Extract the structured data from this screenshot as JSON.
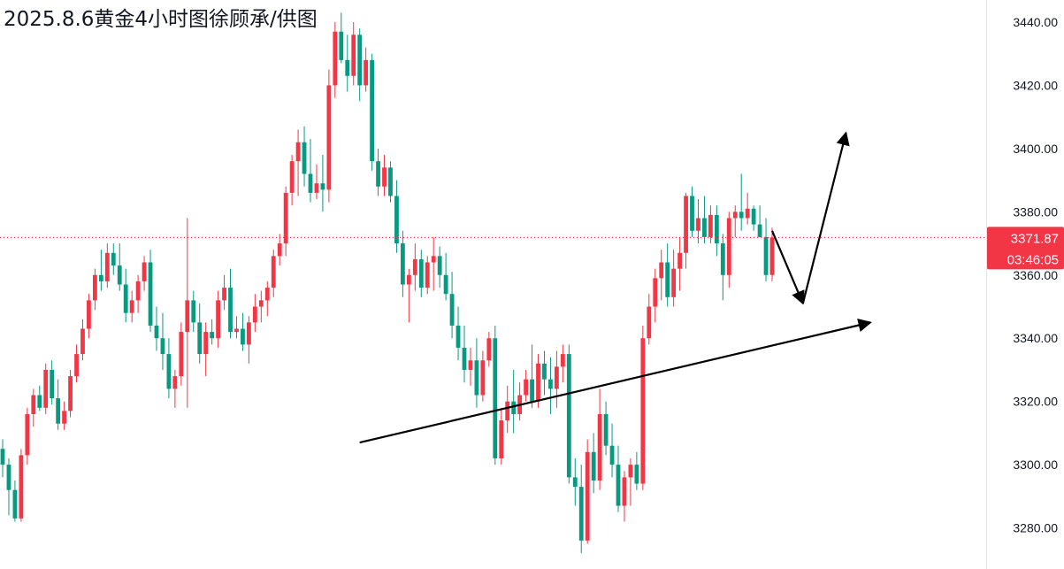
{
  "title": "2025.8.6黄金4小时图徐顾承/供图",
  "colors": {
    "up": "#f23645",
    "down": "#089981",
    "price_line": "#f23645",
    "axis_border": "#e0e3eb",
    "annotation": "#000000"
  },
  "current_price": {
    "value": 3371.87,
    "label": "3371.87",
    "countdown": "03:46:05"
  },
  "chart_data": {
    "type": "candlestick",
    "instrument": "黄金",
    "timeframe": "4小时",
    "ylim": [
      3267,
      3447
    ],
    "y_ticks": [
      3280,
      3300,
      3320,
      3340,
      3360,
      3380,
      3400,
      3420,
      3440
    ],
    "y_tick_labels": [
      "3280.00",
      "3300.00",
      "3320.00",
      "3340.00",
      "3360.00",
      "3380.00",
      "3400.00",
      "3420.00",
      "3440.00"
    ],
    "grid": false,
    "candles": [
      [
        3305,
        3308,
        3296,
        3300
      ],
      [
        3300,
        3302,
        3284,
        3292
      ],
      [
        3292,
        3295,
        3282,
        3283
      ],
      [
        3283,
        3305,
        3282,
        3303
      ],
      [
        3303,
        3318,
        3300,
        3316
      ],
      [
        3316,
        3324,
        3312,
        3322
      ],
      [
        3322,
        3325,
        3317,
        3318
      ],
      [
        3318,
        3332,
        3316,
        3330
      ],
      [
        3330,
        3333,
        3319,
        3321
      ],
      [
        3321,
        3327,
        3311,
        3313
      ],
      [
        3313,
        3320,
        3311,
        3317
      ],
      [
        3317,
        3330,
        3315,
        3328
      ],
      [
        3328,
        3338,
        3326,
        3335
      ],
      [
        3335,
        3346,
        3333,
        3343
      ],
      [
        3343,
        3354,
        3340,
        3352
      ],
      [
        3352,
        3362,
        3349,
        3360
      ],
      [
        3360,
        3368,
        3355,
        3358
      ],
      [
        3358,
        3370,
        3356,
        3367
      ],
      [
        3367,
        3370,
        3360,
        3363
      ],
      [
        3363,
        3370,
        3355,
        3357
      ],
      [
        3357,
        3362,
        3345,
        3348
      ],
      [
        3348,
        3355,
        3345,
        3352
      ],
      [
        3352,
        3360,
        3348,
        3358
      ],
      [
        3358,
        3366,
        3355,
        3364
      ],
      [
        3364,
        3368,
        3342,
        3344
      ],
      [
        3344,
        3350,
        3336,
        3340
      ],
      [
        3340,
        3348,
        3330,
        3335
      ],
      [
        3335,
        3340,
        3321,
        3324
      ],
      [
        3324,
        3330,
        3318,
        3328
      ],
      [
        3328,
        3345,
        3325,
        3342
      ],
      [
        3342,
        3378,
        3318,
        3352
      ],
      [
        3352,
        3355,
        3342,
        3345
      ],
      [
        3345,
        3351,
        3332,
        3335
      ],
      [
        3335,
        3345,
        3328,
        3342
      ],
      [
        3342,
        3346,
        3338,
        3340
      ],
      [
        3340,
        3355,
        3337,
        3352
      ],
      [
        3352,
        3360,
        3349,
        3356
      ],
      [
        3356,
        3362,
        3340,
        3342
      ],
      [
        3342,
        3347,
        3340,
        3343
      ],
      [
        3343,
        3348,
        3336,
        3338
      ],
      [
        3338,
        3347,
        3332,
        3345
      ],
      [
        3345,
        3354,
        3342,
        3350
      ],
      [
        3350,
        3355,
        3345,
        3352
      ],
      [
        3352,
        3358,
        3347,
        3356
      ],
      [
        3356,
        3368,
        3353,
        3366
      ],
      [
        3366,
        3373,
        3363,
        3370
      ],
      [
        3370,
        3388,
        3366,
        3386
      ],
      [
        3386,
        3398,
        3382,
        3396
      ],
      [
        3396,
        3406,
        3385,
        3402
      ],
      [
        3402,
        3407,
        3388,
        3392
      ],
      [
        3392,
        3403,
        3383,
        3386
      ],
      [
        3386,
        3395,
        3384,
        3389
      ],
      [
        3389,
        3398,
        3380,
        3387
      ],
      [
        3387,
        3425,
        3383,
        3420
      ],
      [
        3420,
        3440,
        3416,
        3437
      ],
      [
        3437,
        3443,
        3427,
        3428
      ],
      [
        3428,
        3436,
        3418,
        3423
      ],
      [
        3423,
        3440,
        3420,
        3436
      ],
      [
        3436,
        3438,
        3415,
        3420
      ],
      [
        3420,
        3432,
        3418,
        3428
      ],
      [
        3428,
        3430,
        3393,
        3396
      ],
      [
        3396,
        3400,
        3385,
        3388
      ],
      [
        3388,
        3398,
        3385,
        3394
      ],
      [
        3394,
        3396,
        3383,
        3385
      ],
      [
        3385,
        3390,
        3367,
        3370
      ],
      [
        3370,
        3374,
        3353,
        3357
      ],
      [
        3357,
        3362,
        3345,
        3360
      ],
      [
        3360,
        3370,
        3355,
        3365
      ],
      [
        3365,
        3368,
        3353,
        3356
      ],
      [
        3356,
        3366,
        3354,
        3364
      ],
      [
        3364,
        3372,
        3355,
        3366
      ],
      [
        3366,
        3369,
        3356,
        3360
      ],
      [
        3360,
        3367,
        3352,
        3354
      ],
      [
        3354,
        3361,
        3340,
        3344
      ],
      [
        3344,
        3350,
        3333,
        3337
      ],
      [
        3337,
        3344,
        3326,
        3330
      ],
      [
        3330,
        3337,
        3325,
        3333
      ],
      [
        3333,
        3340,
        3318,
        3322
      ],
      [
        3322,
        3336,
        3320,
        3333
      ],
      [
        3333,
        3342,
        3331,
        3340
      ],
      [
        3340,
        3344,
        3300,
        3302
      ],
      [
        3302,
        3318,
        3300,
        3314
      ],
      [
        3314,
        3325,
        3310,
        3320
      ],
      [
        3320,
        3330,
        3310,
        3316
      ],
      [
        3316,
        3326,
        3314,
        3322
      ],
      [
        3322,
        3330,
        3320,
        3327
      ],
      [
        3327,
        3338,
        3318,
        3320
      ],
      [
        3320,
        3335,
        3318,
        3332
      ],
      [
        3332,
        3336,
        3322,
        3327
      ],
      [
        3327,
        3334,
        3316,
        3324
      ],
      [
        3324,
        3336,
        3318,
        3331
      ],
      [
        3331,
        3338,
        3326,
        3335
      ],
      [
        3335,
        3338,
        3294,
        3296
      ],
      [
        3296,
        3302,
        3287,
        3293
      ],
      [
        3293,
        3300,
        3272,
        3276
      ],
      [
        3276,
        3308,
        3275,
        3304
      ],
      [
        3304,
        3310,
        3291,
        3295
      ],
      [
        3295,
        3324,
        3292,
        3316
      ],
      [
        3316,
        3320,
        3303,
        3306
      ],
      [
        3306,
        3313,
        3296,
        3300
      ],
      [
        3300,
        3306,
        3285,
        3287
      ],
      [
        3287,
        3298,
        3282,
        3296
      ],
      [
        3296,
        3302,
        3287,
        3300
      ],
      [
        3300,
        3304,
        3292,
        3294
      ],
      [
        3294,
        3344,
        3292,
        3340
      ],
      [
        3340,
        3354,
        3338,
        3350
      ],
      [
        3350,
        3362,
        3345,
        3359
      ],
      [
        3359,
        3368,
        3352,
        3364
      ],
      [
        3364,
        3370,
        3350,
        3353
      ],
      [
        3353,
        3368,
        3350,
        3362
      ],
      [
        3362,
        3372,
        3355,
        3367
      ],
      [
        3367,
        3386,
        3362,
        3385
      ],
      [
        3385,
        3388,
        3372,
        3374
      ],
      [
        3374,
        3384,
        3370,
        3378
      ],
      [
        3378,
        3385,
        3370,
        3372
      ],
      [
        3372,
        3382,
        3370,
        3379
      ],
      [
        3379,
        3382,
        3366,
        3370
      ],
      [
        3370,
        3373,
        3352,
        3360
      ],
      [
        3360,
        3380,
        3356,
        3378
      ],
      [
        3378,
        3382,
        3372,
        3380
      ],
      [
        3380,
        3392,
        3374,
        3378
      ],
      [
        3378,
        3386,
        3376,
        3381
      ],
      [
        3381,
        3382,
        3374,
        3376
      ],
      [
        3376,
        3382,
        3372,
        3372
      ],
      [
        3372,
        3378,
        3358,
        3360
      ],
      [
        3360,
        3375,
        3358,
        3371.87
      ]
    ]
  },
  "annotations": {
    "support_line": {
      "from": [
        58,
        3307
      ],
      "to": [
        141,
        3345
      ]
    },
    "projection": [
      [
        125,
        3374
      ],
      [
        130,
        3351
      ],
      [
        137,
        3405
      ]
    ]
  }
}
